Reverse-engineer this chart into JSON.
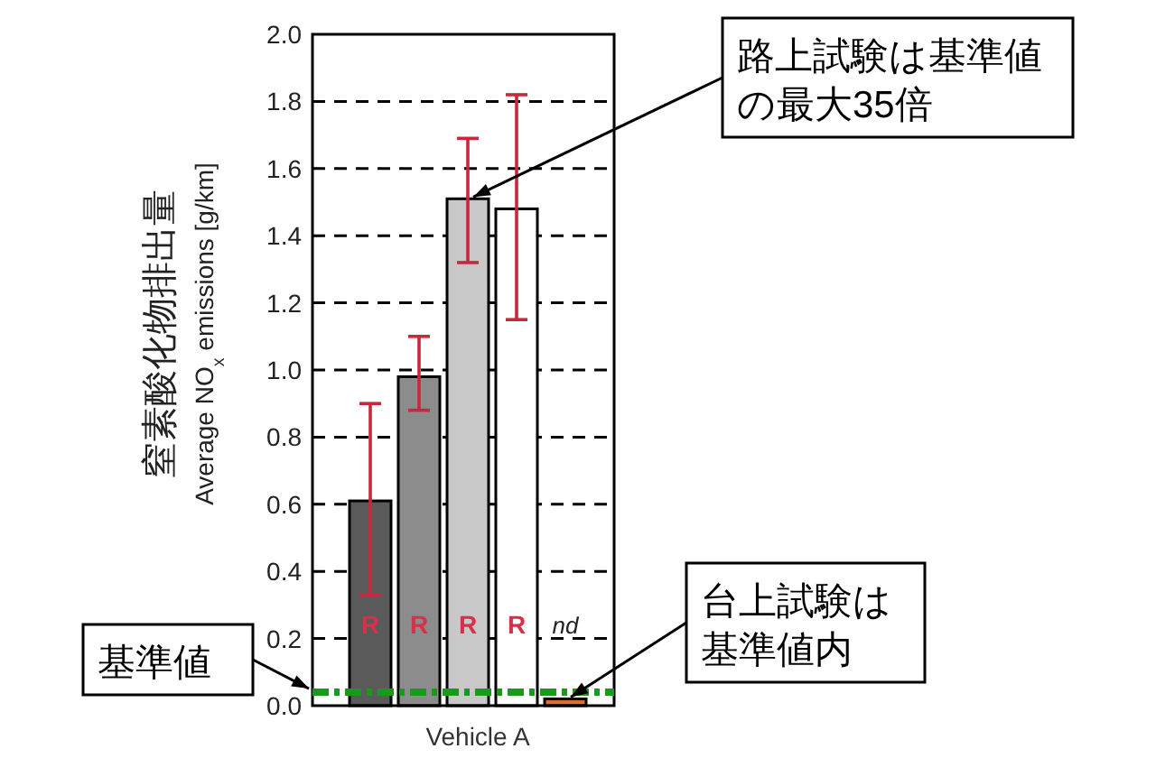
{
  "chart_data": {
    "type": "bar",
    "xlabel": "Vehicle A",
    "ylabel": "窒素酸化物排出量\nAverage NO$_{x}$ emissions [g/km]",
    "categories": [
      null,
      null,
      null,
      null,
      null
    ],
    "values": [
      0.61,
      0.98,
      1.51,
      1.48,
      0.02
    ],
    "colors": [
      "#5a5a5a",
      "#8c8c8c",
      "#c8c8c8",
      "#ffffff",
      "#e07030"
    ],
    "errors": [
      [
        0.33,
        0.9
      ],
      [
        0.88,
        1.1
      ],
      [
        1.32,
        1.69
      ],
      [
        1.15,
        1.82
      ],
      null
    ],
    "value_labels": [
      "R",
      "R",
      "R",
      "R",
      "nd"
    ],
    "ylim": [
      0,
      2
    ],
    "yticks": [
      {
        "value": 0,
        "label": "0.0"
      },
      0.2,
      0.4,
      0.6,
      0.8,
      {
        "value": 1,
        "label": "1.0"
      },
      1.2,
      1.4,
      1.6,
      1.8,
      {
        "value": 2,
        "label": "2.0"
      }
    ],
    "grid": "y",
    "ref_lines": [
      {
        "axis": "y",
        "value": 0.04,
        "label": "基準値",
        "color": "#1a9a1a",
        "line_style": "dashdot"
      }
    ],
    "annotations": [
      "路上試験は基準値の最大35倍",
      "台上試験は基準値内"
    ]
  }
}
